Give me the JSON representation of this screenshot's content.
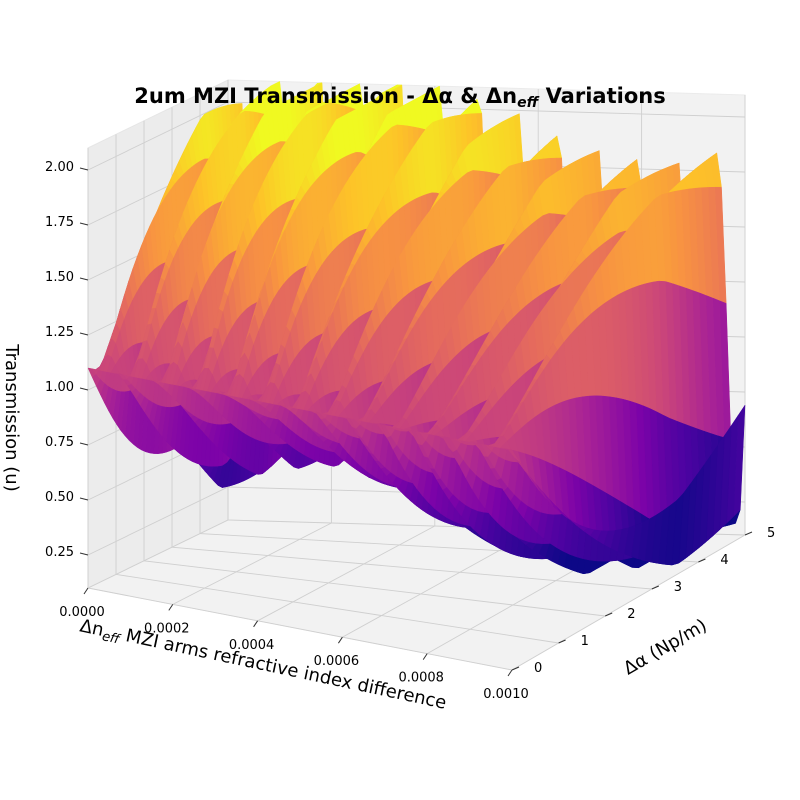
{
  "chart_data": {
    "type": "surface3d",
    "title": "2um MZI Transmission - Δα & Δn",
    "title_sub": "eff",
    "title_suffix": " Variations",
    "xlabel": "Δn",
    "xlabel_sub": "eff",
    "xlabel_suffix": " MZI arms refractive index difference",
    "ylabel": "Δα (Np/m)",
    "zlabel": "Transmission (u)",
    "x_ticks": [
      "0.0000",
      "0.0002",
      "0.0004",
      "0.0006",
      "0.0008",
      "0.0010"
    ],
    "y_ticks": [
      "0",
      "1",
      "2",
      "3",
      "4",
      "5"
    ],
    "z_ticks": [
      "0.25",
      "0.50",
      "0.75",
      "1.00",
      "1.25",
      "1.50",
      "1.75",
      "2.00"
    ],
    "xlim": [
      0,
      0.001
    ],
    "ylim": [
      0,
      5
    ],
    "zlim": [
      0.1,
      2.1
    ],
    "colormap": "plasma",
    "surface": {
      "delta_neff_range": [
        0,
        0.001
      ],
      "delta_alpha_range": [
        0,
        5
      ],
      "min_transmission": 0.25,
      "max_transmission": 2.0,
      "front_edge_transmission": 1.1,
      "fringe_count": 13
    }
  }
}
